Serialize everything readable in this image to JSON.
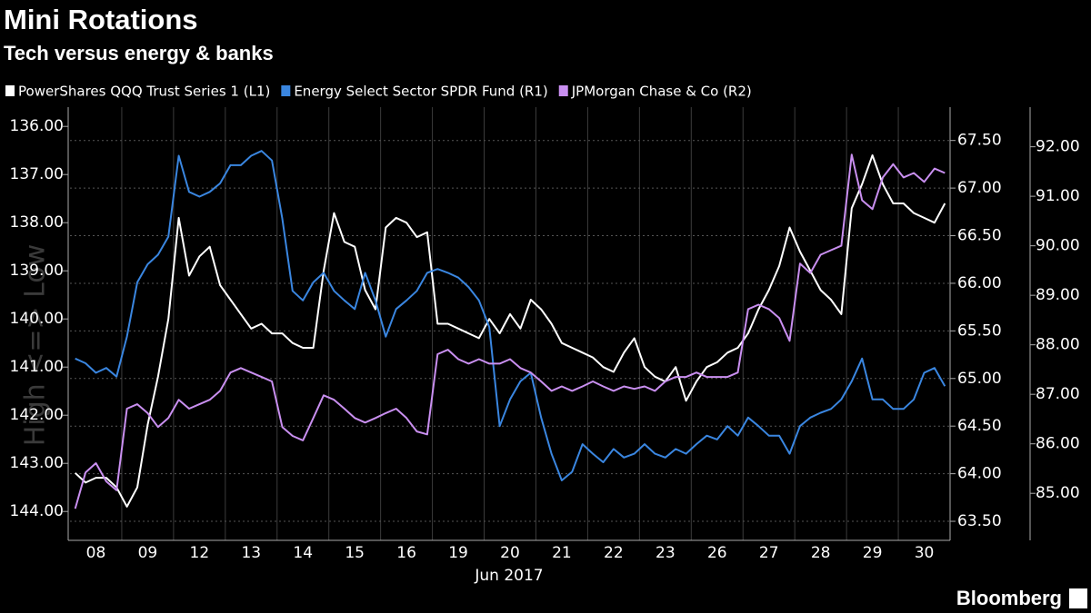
{
  "chart_data": {
    "type": "line",
    "title": "Mini Rotations",
    "subtitle": "Tech versus energy & banks",
    "y_side_label": "High <=> Low",
    "x_label": "Jun 2017",
    "source": "Bloomberg",
    "categories": [
      null,
      null,
      "08",
      null,
      null,
      null,
      null,
      "09",
      null,
      null,
      null,
      null,
      "12",
      null,
      null,
      null,
      null,
      "13",
      null,
      null,
      null,
      null,
      "14",
      null,
      null,
      null,
      null,
      "15",
      null,
      null,
      null,
      null,
      "16",
      null,
      null,
      null,
      null,
      "19",
      null,
      null,
      null,
      null,
      "20",
      null,
      null,
      null,
      null,
      "21",
      null,
      null,
      null,
      null,
      "22",
      null,
      null,
      null,
      null,
      "23",
      null,
      null,
      null,
      null,
      "26",
      null,
      null,
      null,
      null,
      "27",
      null,
      null,
      null,
      null,
      "28",
      null,
      null,
      null,
      null,
      "29",
      null,
      null,
      null,
      null,
      "30",
      null,
      null
    ],
    "ylim": [
      135.6,
      144.6
    ],
    "y_inverted": true,
    "yticks": [
      {
        "value": 136,
        "label": "136.00"
      },
      {
        "value": 137,
        "label": "137.00"
      },
      {
        "value": 138,
        "label": "138.00"
      },
      {
        "value": 139,
        "label": "139.00"
      },
      {
        "value": 140,
        "label": "140.00"
      },
      {
        "value": 141,
        "label": "141.00"
      },
      {
        "value": 142,
        "label": "142.00"
      },
      {
        "value": 143,
        "label": "143.00"
      },
      {
        "value": 144,
        "label": "144.00"
      }
    ],
    "y2lim": [
      63.3,
      67.85
    ],
    "y2ticks": [
      {
        "value": 63.5,
        "label": "63.50"
      },
      {
        "value": 64,
        "label": "64.00"
      },
      {
        "value": 64.5,
        "label": "64.50"
      },
      {
        "value": 65,
        "label": "65.00"
      },
      {
        "value": 65.5,
        "label": "65.50"
      },
      {
        "value": 66,
        "label": "66.00"
      },
      {
        "value": 66.5,
        "label": "66.50"
      },
      {
        "value": 67,
        "label": "67.00"
      },
      {
        "value": 67.5,
        "label": "67.50"
      }
    ],
    "y3lim": [
      84.05,
      92.8
    ],
    "y3ticks": [
      {
        "value": 85,
        "label": "85.00"
      },
      {
        "value": 86,
        "label": "86.00"
      },
      {
        "value": 87,
        "label": "87.00"
      },
      {
        "value": 88,
        "label": "88.00"
      },
      {
        "value": 89,
        "label": "89.00"
      },
      {
        "value": 90,
        "label": "90.00"
      },
      {
        "value": 91,
        "label": "91.00"
      },
      {
        "value": 92,
        "label": "92.00"
      }
    ],
    "grid": true,
    "series": [
      {
        "name": "PowerShares QQQ Trust Series 1 (L1)",
        "color": "#ffffff",
        "axis": "y",
        "values": [
          143.2,
          143.4,
          143.3,
          143.3,
          143.5,
          143.9,
          143.5,
          142.2,
          141.2,
          140.0,
          137.9,
          139.1,
          138.7,
          138.5,
          139.3,
          139.6,
          139.9,
          140.2,
          140.1,
          140.3,
          140.3,
          140.5,
          140.6,
          140.6,
          139.0,
          137.8,
          138.4,
          138.5,
          139.4,
          139.8,
          138.1,
          137.9,
          138.0,
          138.3,
          138.2,
          140.1,
          140.1,
          140.2,
          140.3,
          140.4,
          140.0,
          140.3,
          139.9,
          140.2,
          139.6,
          139.8,
          140.1,
          140.5,
          140.6,
          140.7,
          140.8,
          141.0,
          141.1,
          140.7,
          140.4,
          141.0,
          141.2,
          141.3,
          141.0,
          141.7,
          141.3,
          141.0,
          140.9,
          140.7,
          140.6,
          140.3,
          139.8,
          139.4,
          138.9,
          138.1,
          138.6,
          139.0,
          139.4,
          139.6,
          139.9,
          137.7,
          137.2,
          136.6,
          137.2,
          137.6,
          137.6,
          137.8,
          137.9,
          138.0,
          137.6
        ]
      },
      {
        "name": "Energy Select Sector SPDR Fund (R1)",
        "color": "#3a86e0",
        "axis": "y2",
        "values": [
          65.21,
          65.16,
          65.06,
          65.11,
          65.02,
          65.44,
          66.01,
          66.2,
          66.3,
          66.49,
          67.34,
          66.96,
          66.91,
          66.96,
          67.05,
          67.24,
          67.24,
          67.34,
          67.39,
          67.29,
          66.68,
          65.92,
          65.82,
          66.01,
          66.11,
          65.92,
          65.82,
          65.73,
          66.11,
          65.82,
          65.44,
          65.73,
          65.82,
          65.92,
          66.11,
          66.15,
          66.11,
          66.06,
          65.96,
          65.82,
          65.54,
          64.5,
          64.78,
          64.97,
          65.06,
          64.59,
          64.21,
          63.93,
          64.02,
          64.31,
          64.21,
          64.12,
          64.26,
          64.17,
          64.21,
          64.31,
          64.21,
          64.17,
          64.26,
          64.21,
          64.31,
          64.4,
          64.36,
          64.5,
          64.4,
          64.59,
          64.5,
          64.4,
          64.4,
          64.21,
          64.5,
          64.59,
          64.64,
          64.68,
          64.78,
          64.97,
          65.21,
          64.78,
          64.78,
          64.68,
          64.68,
          64.78,
          65.06,
          65.11,
          64.92
        ]
      },
      {
        "name": "JPMorgan Chase & Co (R2)",
        "color": "#c98ff0",
        "axis": "y3",
        "values": [
          84.69,
          85.42,
          85.61,
          85.24,
          85.06,
          86.71,
          86.8,
          86.62,
          86.34,
          86.52,
          86.89,
          86.71,
          86.8,
          86.89,
          87.07,
          87.44,
          87.53,
          87.44,
          87.35,
          87.26,
          86.34,
          86.16,
          86.07,
          86.52,
          86.98,
          86.89,
          86.71,
          86.52,
          86.43,
          86.52,
          86.62,
          86.71,
          86.52,
          86.25,
          86.19,
          87.81,
          87.9,
          87.71,
          87.62,
          87.71,
          87.62,
          87.62,
          87.71,
          87.53,
          87.44,
          87.26,
          87.07,
          87.16,
          87.07,
          87.16,
          87.26,
          87.16,
          87.07,
          87.16,
          87.11,
          87.16,
          87.07,
          87.26,
          87.35,
          87.35,
          87.44,
          87.35,
          87.35,
          87.35,
          87.44,
          88.72,
          88.81,
          88.72,
          88.54,
          88.08,
          89.64,
          89.45,
          89.82,
          89.91,
          90.0,
          91.84,
          90.92,
          90.74,
          91.38,
          91.65,
          91.38,
          91.47,
          91.29,
          91.56,
          91.47
        ]
      }
    ]
  }
}
